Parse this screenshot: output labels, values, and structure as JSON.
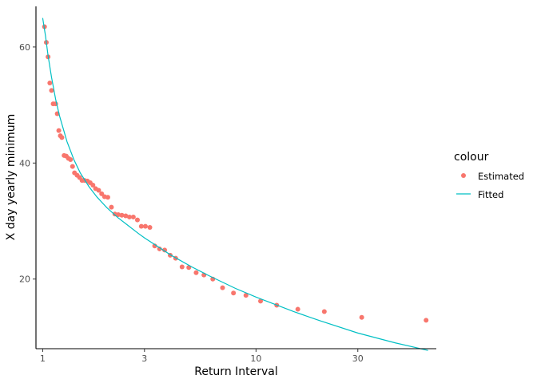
{
  "chart_data": {
    "type": "scatter",
    "xlabel": "Return Interval",
    "ylabel": "X day yearly minimum",
    "x_scale": "log",
    "xlim": [
      0.93,
      70
    ],
    "ylim": [
      8,
      67
    ],
    "x_ticks": [
      {
        "value": 1,
        "label": "1"
      },
      {
        "value": 3,
        "label": "3"
      },
      {
        "value": 10,
        "label": "10"
      },
      {
        "value": 30,
        "label": "30"
      }
    ],
    "y_ticks": [
      {
        "value": 20,
        "label": "20"
      },
      {
        "value": 40,
        "label": "40"
      },
      {
        "value": 60,
        "label": "60"
      }
    ],
    "grid": false,
    "legend": {
      "title": "colour",
      "placement": "right",
      "entries": [
        {
          "label": "Estimated",
          "kind": "point",
          "color": "#F8766D"
        },
        {
          "label": "Fitted",
          "kind": "line",
          "color": "#00BFC4"
        }
      ]
    },
    "series": [
      {
        "name": "Estimated",
        "kind": "points",
        "color": "#F8766D",
        "points": [
          [
            1.02,
            63.5
          ],
          [
            1.04,
            60.8
          ],
          [
            1.06,
            58.3
          ],
          [
            1.08,
            53.8
          ],
          [
            1.1,
            52.5
          ],
          [
            1.12,
            50.2
          ],
          [
            1.15,
            50.2
          ],
          [
            1.17,
            48.5
          ],
          [
            1.19,
            45.6
          ],
          [
            1.21,
            44.7
          ],
          [
            1.23,
            44.4
          ],
          [
            1.26,
            41.3
          ],
          [
            1.29,
            41.2
          ],
          [
            1.32,
            40.8
          ],
          [
            1.35,
            40.6
          ],
          [
            1.38,
            39.4
          ],
          [
            1.41,
            38.3
          ],
          [
            1.45,
            37.9
          ],
          [
            1.49,
            37.5
          ],
          [
            1.53,
            37.0
          ],
          [
            1.57,
            37.0
          ],
          [
            1.62,
            36.9
          ],
          [
            1.67,
            36.6
          ],
          [
            1.72,
            36.2
          ],
          [
            1.77,
            35.6
          ],
          [
            1.83,
            35.3
          ],
          [
            1.89,
            34.7
          ],
          [
            1.95,
            34.2
          ],
          [
            2.02,
            34.1
          ],
          [
            2.1,
            32.4
          ],
          [
            2.18,
            31.2
          ],
          [
            2.26,
            31.1
          ],
          [
            2.35,
            31.0
          ],
          [
            2.45,
            30.9
          ],
          [
            2.55,
            30.7
          ],
          [
            2.66,
            30.7
          ],
          [
            2.78,
            30.2
          ],
          [
            2.9,
            29.1
          ],
          [
            3.03,
            29.1
          ],
          [
            3.18,
            28.9
          ],
          [
            3.35,
            25.7
          ],
          [
            3.53,
            25.2
          ],
          [
            3.73,
            25.0
          ],
          [
            3.96,
            24.1
          ],
          [
            4.2,
            23.6
          ],
          [
            4.5,
            22.1
          ],
          [
            4.84,
            22.0
          ],
          [
            5.24,
            21.1
          ],
          [
            5.7,
            20.7
          ],
          [
            6.27,
            20.0
          ],
          [
            6.97,
            18.5
          ],
          [
            7.84,
            17.6
          ],
          [
            8.97,
            17.2
          ],
          [
            10.5,
            16.2
          ],
          [
            12.5,
            15.5
          ],
          [
            15.7,
            14.8
          ],
          [
            20.9,
            14.4
          ],
          [
            31.3,
            13.4
          ],
          [
            62.7,
            12.9
          ]
        ]
      },
      {
        "name": "Fitted",
        "kind": "line",
        "color": "#00BFC4",
        "points": [
          [
            1.0,
            65.0
          ],
          [
            1.03,
            62.0
          ],
          [
            1.06,
            58.5
          ],
          [
            1.1,
            54.8
          ],
          [
            1.15,
            51.0
          ],
          [
            1.2,
            48.1
          ],
          [
            1.3,
            43.7
          ],
          [
            1.4,
            40.6
          ],
          [
            1.5,
            38.3
          ],
          [
            1.65,
            35.9
          ],
          [
            1.8,
            34.1
          ],
          [
            2.0,
            32.3
          ],
          [
            2.25,
            30.6
          ],
          [
            2.5,
            29.3
          ],
          [
            2.8,
            27.9
          ],
          [
            3.0,
            27.1
          ],
          [
            3.5,
            25.5
          ],
          [
            4.0,
            24.1
          ],
          [
            5.0,
            22.1
          ],
          [
            6.0,
            20.6
          ],
          [
            8.0,
            18.4
          ],
          [
            10.0,
            16.9
          ],
          [
            15.0,
            14.4
          ],
          [
            20.0,
            12.8
          ],
          [
            30.0,
            10.7
          ],
          [
            45.0,
            9.0
          ],
          [
            64.0,
            7.7
          ]
        ]
      }
    ]
  }
}
